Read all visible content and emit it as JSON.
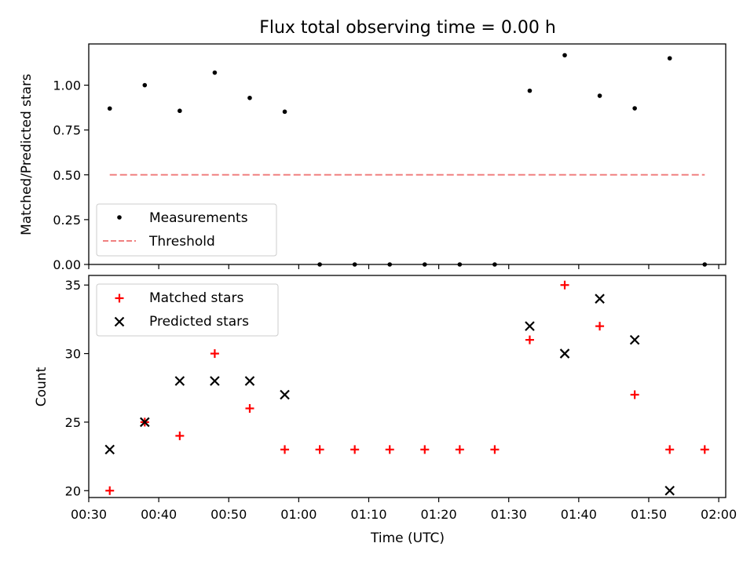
{
  "chart_data": [
    {
      "type": "scatter",
      "title": "Flux total observing time = 0.00 h",
      "xlabel": "",
      "ylabel": "Matched/Predicted stars",
      "xlim": [
        "00:30",
        "02:01"
      ],
      "ylim": [
        0,
        1.23
      ],
      "yticks": [
        "0.00",
        "0.25",
        "0.50",
        "0.75",
        "1.00"
      ],
      "legend_position": "lower-left",
      "series": [
        {
          "name": "Measurements",
          "marker": "dot",
          "color": "#000000",
          "points": [
            {
              "x": "00:33",
              "y": 0.87
            },
            {
              "x": "00:38",
              "y": 1.0
            },
            {
              "x": "00:43",
              "y": 0.857
            },
            {
              "x": "00:48",
              "y": 1.07
            },
            {
              "x": "00:53",
              "y": 0.929
            },
            {
              "x": "00:58",
              "y": 0.852
            },
            {
              "x": "01:03",
              "y": 0
            },
            {
              "x": "01:08",
              "y": 0
            },
            {
              "x": "01:13",
              "y": 0
            },
            {
              "x": "01:18",
              "y": 0
            },
            {
              "x": "01:23",
              "y": 0
            },
            {
              "x": "01:28",
              "y": 0
            },
            {
              "x": "01:33",
              "y": 0.969
            },
            {
              "x": "01:38",
              "y": 1.167
            },
            {
              "x": "01:43",
              "y": 0.941
            },
            {
              "x": "01:48",
              "y": 0.871
            },
            {
              "x": "01:53",
              "y": 1.15
            },
            {
              "x": "01:58",
              "y": 0
            }
          ]
        },
        {
          "name": "Threshold",
          "style": "dashed-line",
          "color": "#f08080",
          "points": [
            {
              "x": "00:33",
              "y": 0.5
            },
            {
              "x": "01:58",
              "y": 0.5
            }
          ]
        }
      ]
    },
    {
      "type": "scatter",
      "title": "",
      "xlabel": "Time (UTC)",
      "ylabel": "Count",
      "xlim": [
        "00:30",
        "02:01"
      ],
      "ylim": [
        19.5,
        35.7
      ],
      "yticks": [
        "20",
        "25",
        "30",
        "35"
      ],
      "xticks": [
        "00:30",
        "00:40",
        "00:50",
        "01:00",
        "01:10",
        "01:20",
        "01:30",
        "01:40",
        "01:50",
        "02:00"
      ],
      "legend_position": "upper-left",
      "series": [
        {
          "name": "Matched stars",
          "marker": "plus",
          "color": "#ff0000",
          "points": [
            {
              "x": "00:33",
              "y": 20
            },
            {
              "x": "00:38",
              "y": 25
            },
            {
              "x": "00:43",
              "y": 24
            },
            {
              "x": "00:48",
              "y": 30
            },
            {
              "x": "00:53",
              "y": 26
            },
            {
              "x": "00:58",
              "y": 23
            },
            {
              "x": "01:03",
              "y": 23
            },
            {
              "x": "01:08",
              "y": 23
            },
            {
              "x": "01:13",
              "y": 23
            },
            {
              "x": "01:18",
              "y": 23
            },
            {
              "x": "01:23",
              "y": 23
            },
            {
              "x": "01:28",
              "y": 23
            },
            {
              "x": "01:33",
              "y": 31
            },
            {
              "x": "01:38",
              "y": 35
            },
            {
              "x": "01:43",
              "y": 32
            },
            {
              "x": "01:48",
              "y": 27
            },
            {
              "x": "01:53",
              "y": 23
            },
            {
              "x": "01:58",
              "y": 23
            }
          ]
        },
        {
          "name": "Predicted stars",
          "marker": "x",
          "color": "#000000",
          "points": [
            {
              "x": "00:33",
              "y": 23
            },
            {
              "x": "00:38",
              "y": 25
            },
            {
              "x": "00:43",
              "y": 28
            },
            {
              "x": "00:48",
              "y": 28
            },
            {
              "x": "00:53",
              "y": 28
            },
            {
              "x": "00:58",
              "y": 27
            },
            {
              "x": "01:33",
              "y": 32
            },
            {
              "x": "01:38",
              "y": 30
            },
            {
              "x": "01:43",
              "y": 34
            },
            {
              "x": "01:48",
              "y": 31
            },
            {
              "x": "01:53",
              "y": 20
            }
          ]
        }
      ]
    }
  ]
}
